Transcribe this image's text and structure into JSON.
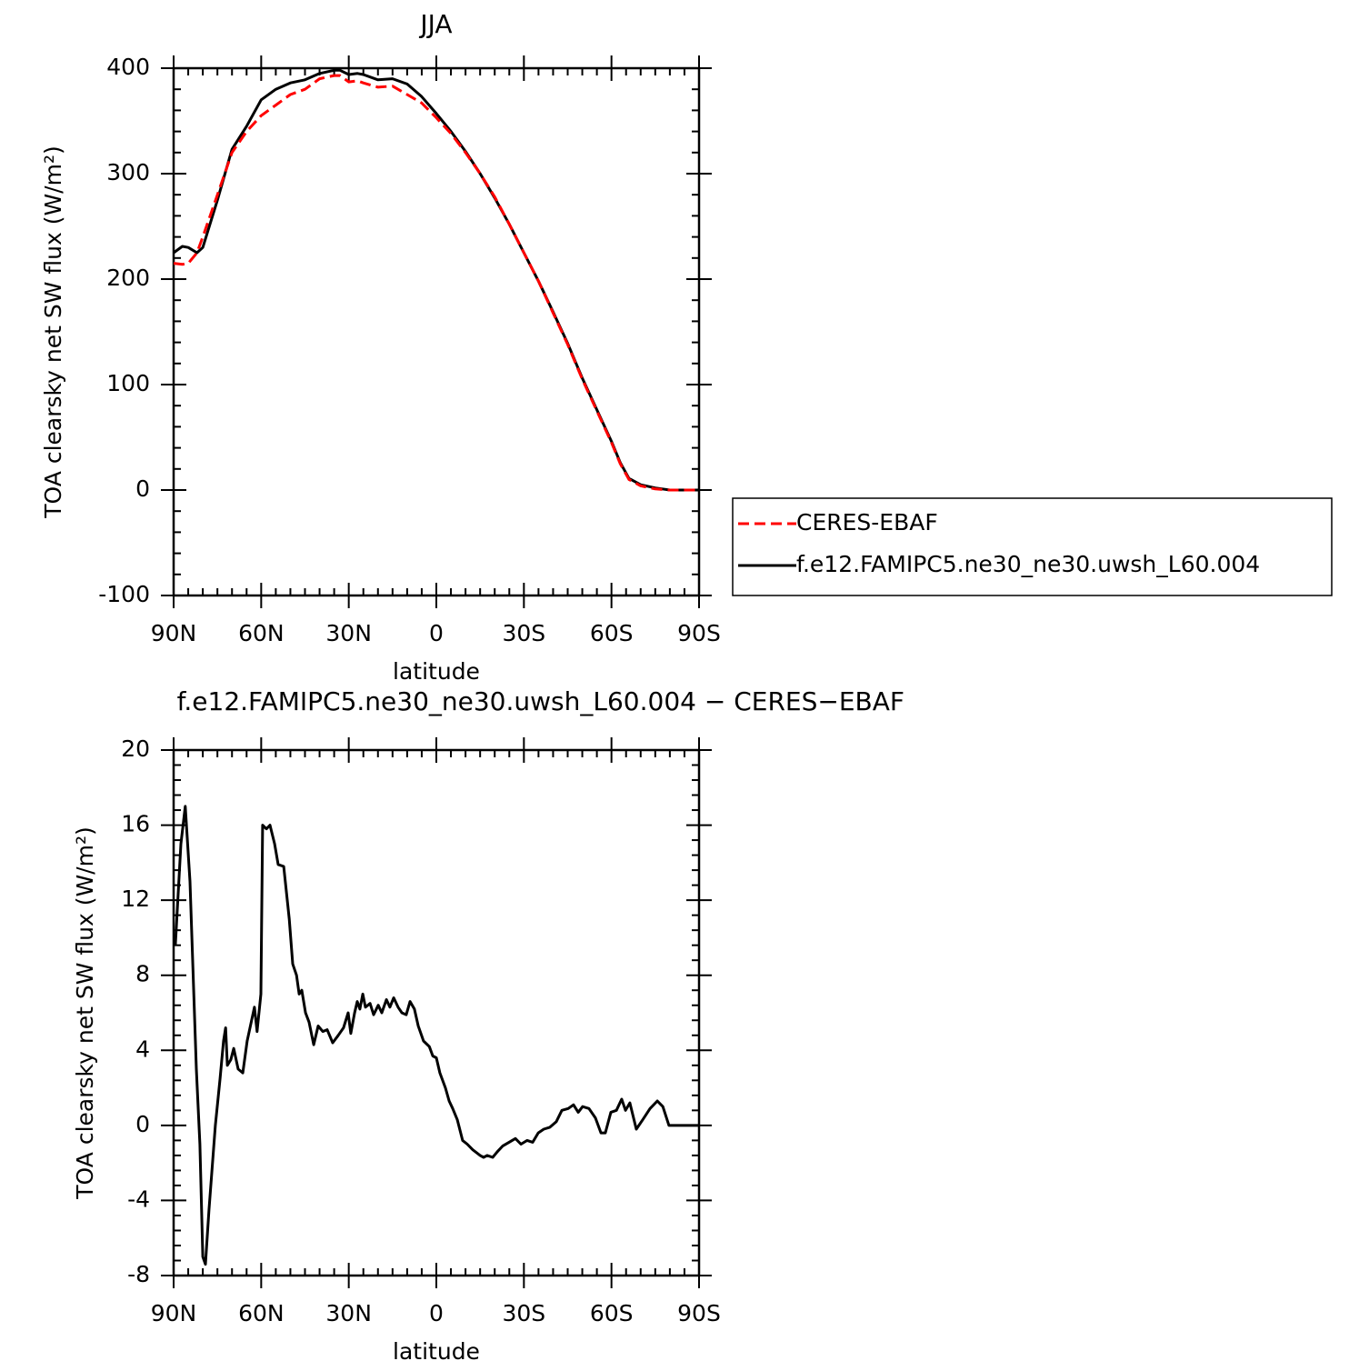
{
  "chart_data": [
    {
      "type": "line",
      "title": "JJA",
      "xlabel": "latitude",
      "ylabel": "TOA clearsky net SW flux (W/m²)",
      "x": [
        90,
        87,
        85,
        82,
        80,
        75,
        70,
        65,
        60,
        55,
        50,
        45,
        40,
        35,
        33,
        30,
        27,
        25,
        20,
        15,
        10,
        5,
        0,
        -5,
        -10,
        -15,
        -20,
        -25,
        -30,
        -35,
        -40,
        -45,
        -50,
        -55,
        -60,
        -63,
        -66,
        -70,
        -75,
        -80,
        -85,
        -90
      ],
      "xlim": [
        90,
        -90
      ],
      "xticks": [
        {
          "value": 90,
          "label": "90N"
        },
        {
          "value": 60,
          "label": "60N"
        },
        {
          "value": 30,
          "label": "30N"
        },
        0,
        {
          "value": -30,
          "label": "30S"
        },
        {
          "value": -60,
          "label": "60S"
        },
        {
          "value": -90,
          "label": "90S"
        }
      ],
      "ylim": [
        -100,
        400
      ],
      "yticks": [
        -100,
        0,
        100,
        200,
        300,
        400
      ],
      "legend": "right",
      "series": [
        {
          "name": "CERES-EBAF",
          "color": "#ff0000",
          "dashed": true,
          "values": [
            215,
            214,
            215,
            225,
            240,
            280,
            320,
            340,
            355,
            365,
            375,
            380,
            390,
            393,
            393,
            387,
            388,
            386,
            382,
            383,
            375,
            367,
            353,
            338,
            320,
            300,
            278,
            252,
            225,
            198,
            168,
            138,
            105,
            75,
            45,
            25,
            10,
            4,
            1,
            0,
            0,
            0
          ]
        },
        {
          "name": "f.e12.FAMIPC5.ne30_ne30.uwsh_L60.004",
          "color": "#000000",
          "dashed": false,
          "values": [
            225,
            231,
            230,
            225,
            230,
            275,
            323,
            345,
            370,
            380,
            386,
            389,
            395,
            398,
            398,
            394,
            395,
            394,
            389,
            390,
            385,
            373,
            357,
            340,
            321,
            300,
            277,
            252,
            225,
            198,
            169,
            139,
            106,
            76,
            46,
            26,
            11,
            5,
            2,
            0,
            0,
            0
          ]
        }
      ]
    },
    {
      "type": "line",
      "title": "f.e12.FAMIPC5.ne30_ne30.uwsh_L60.004 − CERES−EBAF",
      "xlabel": "latitude",
      "ylabel": "TOA clearsky net SW flux (W/m²)",
      "x": [
        89.4,
        87.5,
        86,
        84.4,
        82.2,
        81,
        80,
        79.1,
        77.9,
        75.7,
        74.1,
        72.9,
        72.2,
        71.6,
        70.4,
        69.4,
        67.9,
        66.3,
        64.8,
        62.3,
        61.4,
        60.1,
        59.5,
        58.2,
        57,
        55.4,
        54.2,
        52.3,
        50.4,
        49.2,
        47.9,
        47,
        46.1,
        44.8,
        43.6,
        42,
        40.5,
        38.9,
        37.4,
        35.5,
        33.6,
        31.8,
        30.2,
        29.3,
        28,
        27.1,
        26.2,
        25.2,
        24.3,
        22.7,
        21.5,
        19.9,
        18.7,
        17.1,
        15.9,
        14.6,
        13.1,
        11.8,
        10.3,
        9,
        7.5,
        6.2,
        4.4,
        2.4,
        1.2,
        0,
        -1.2,
        -3.1,
        -4.4,
        -5.6,
        -7.2,
        -9,
        -10.6,
        -12.5,
        -15,
        -16.2,
        -17.4,
        -19.3,
        -20.9,
        -22.7,
        -24.9,
        -27.1,
        -29,
        -31.1,
        -33,
        -34.9,
        -36.8,
        -38.9,
        -41.1,
        -43,
        -45.2,
        -47,
        -48.6,
        -50.1,
        -52.3,
        -54.5,
        -56.4,
        -57.9,
        -59.8,
        -61.7,
        -63.5,
        -64.8,
        -66.3,
        -68.5,
        -70.7,
        -73.2,
        -75.7,
        -77.6,
        -79.7,
        -82.5,
        -90
      ],
      "xlim": [
        90,
        -90
      ],
      "xticks": [
        {
          "value": 90,
          "label": "90N"
        },
        {
          "value": 60,
          "label": "60N"
        },
        {
          "value": 30,
          "label": "30N"
        },
        0,
        {
          "value": -30,
          "label": "30S"
        },
        {
          "value": -60,
          "label": "60S"
        },
        {
          "value": -90,
          "label": "90S"
        }
      ],
      "ylim": [
        -8,
        20
      ],
      "yticks": [
        -8,
        -4,
        0,
        4,
        8,
        12,
        16,
        20
      ],
      "series": [
        {
          "color": "#000000",
          "dashed": false,
          "values": [
            9.6,
            15,
            17,
            13,
            3,
            -1,
            -7,
            -7.4,
            -4.5,
            0,
            2.5,
            4.5,
            5.2,
            3.2,
            3.5,
            4.1,
            3,
            2.8,
            4.5,
            6.3,
            5,
            7,
            16,
            15.8,
            16,
            15,
            13.9,
            13.8,
            11,
            8.6,
            8,
            7,
            7.2,
            6,
            5.5,
            4.3,
            5.3,
            5,
            5.1,
            4.4,
            4.8,
            5.2,
            6,
            4.9,
            6,
            6.6,
            6.2,
            7,
            6.3,
            6.5,
            5.9,
            6.4,
            6,
            6.7,
            6.3,
            6.8,
            6.3,
            6,
            5.9,
            6.6,
            6.2,
            5.3,
            4.5,
            4.2,
            3.7,
            3.6,
            2.8,
            2,
            1.3,
            0.9,
            0.3,
            -0.8,
            -1,
            -1.3,
            -1.6,
            -1.7,
            -1.6,
            -1.7,
            -1.4,
            -1.1,
            -0.9,
            -0.7,
            -1,
            -0.8,
            -0.9,
            -0.4,
            -0.2,
            -0.1,
            0.2,
            0.8,
            0.9,
            1.1,
            0.7,
            1,
            0.9,
            0.4,
            -0.4,
            -0.4,
            0.7,
            0.8,
            1.4,
            0.8,
            1.2,
            -0.2,
            0.3,
            0.9,
            1.3,
            1,
            0,
            0,
            0
          ]
        }
      ]
    }
  ]
}
